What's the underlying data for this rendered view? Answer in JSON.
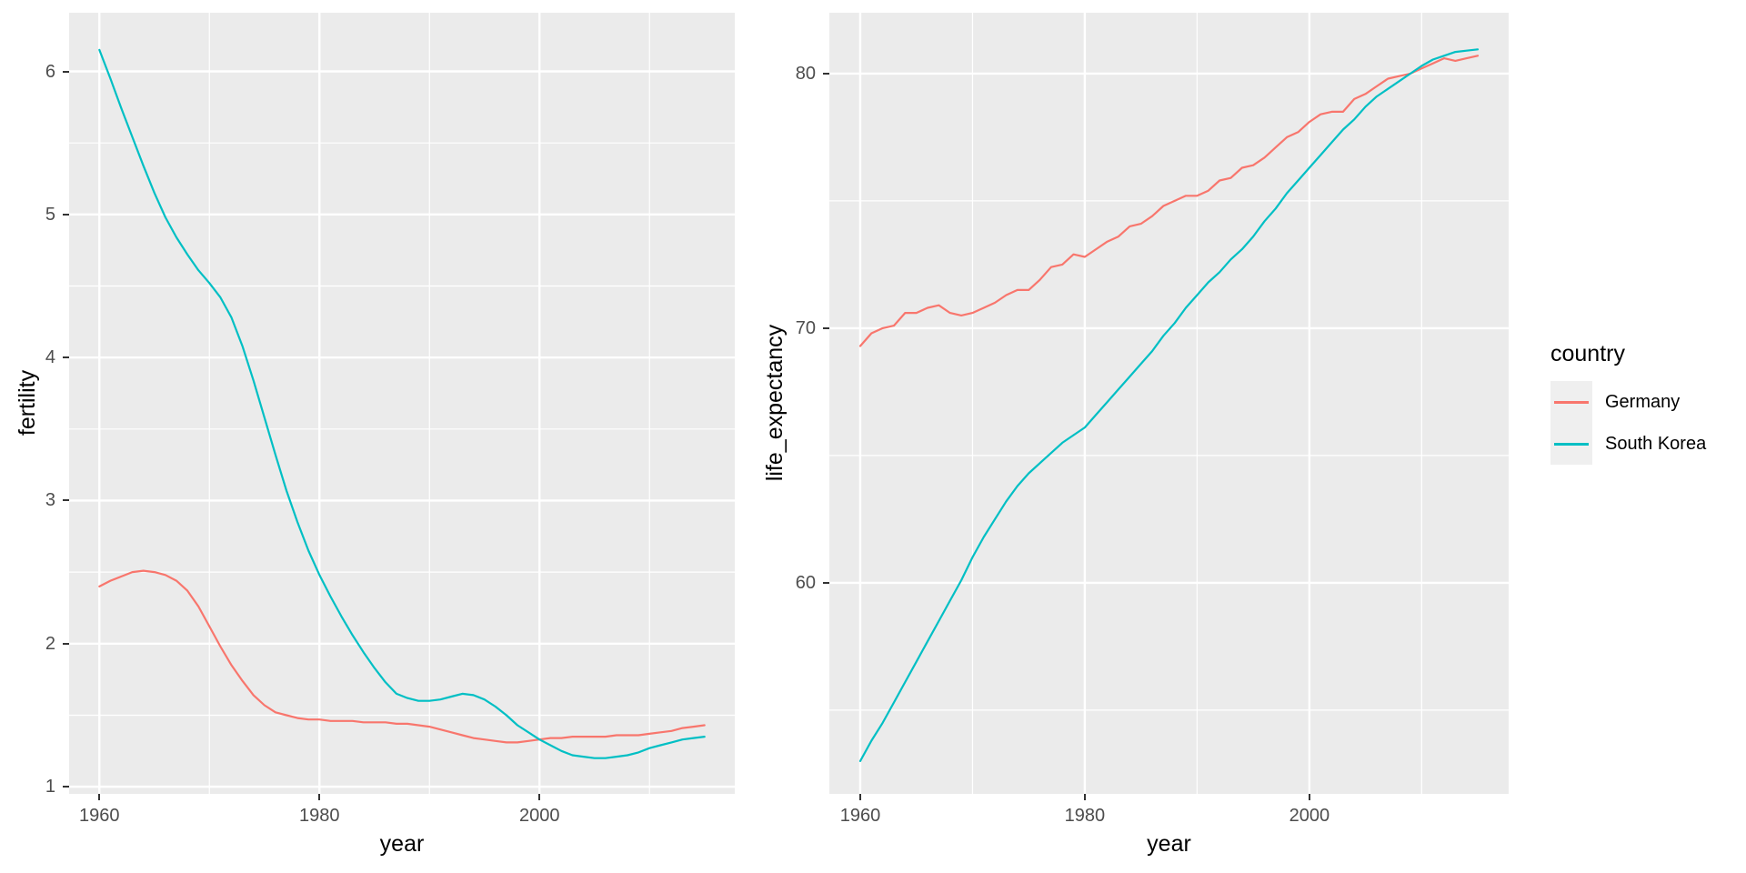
{
  "colors": {
    "germany": "#F8766D",
    "south_korea": "#00BFC4",
    "panel_bg": "#EBEBEB",
    "grid": "#FFFFFF",
    "axis_text": "#4D4D4D",
    "tick_mark": "#333333",
    "legend_key_bg": "#EFEFEF",
    "background": "#FFFFFF"
  },
  "legend": {
    "title": "country",
    "items": [
      {
        "label": "Germany",
        "color": "#F8766D"
      },
      {
        "label": "South Korea",
        "color": "#00BFC4"
      }
    ]
  },
  "chart_data": [
    {
      "type": "line",
      "title": "",
      "xlabel": "year",
      "ylabel": "fertility",
      "xlim": [
        1957.25,
        2017.75
      ],
      "ylim": [
        0.95,
        6.41
      ],
      "grid": true,
      "legend_position": "right-of-figure",
      "x_major": [
        1960,
        1980,
        2000
      ],
      "x_tick_labels": [
        "1960",
        "1980",
        "2000"
      ],
      "x_minor": [
        1970,
        1990,
        2010
      ],
      "y_major": [
        1,
        2,
        3,
        4,
        5,
        6
      ],
      "y_tick_labels": [
        "1",
        "2",
        "3",
        "4",
        "5",
        "6"
      ],
      "y_minor": [
        1.5,
        2.5,
        3.5,
        4.5,
        5.5
      ],
      "x_start": 1960,
      "x_step": 1,
      "x_end": 2015,
      "series": [
        {
          "name": "Germany",
          "color": "#F8766D",
          "values": [
            2.4,
            2.44,
            2.47,
            2.5,
            2.51,
            2.5,
            2.48,
            2.44,
            2.37,
            2.26,
            2.12,
            1.98,
            1.85,
            1.74,
            1.64,
            1.57,
            1.52,
            1.5,
            1.48,
            1.47,
            1.47,
            1.46,
            1.46,
            1.46,
            1.45,
            1.45,
            1.45,
            1.44,
            1.44,
            1.43,
            1.42,
            1.4,
            1.38,
            1.36,
            1.34,
            1.33,
            1.32,
            1.31,
            1.31,
            1.32,
            1.33,
            1.34,
            1.34,
            1.35,
            1.35,
            1.35,
            1.35,
            1.36,
            1.36,
            1.36,
            1.37,
            1.38,
            1.39,
            1.41,
            1.42,
            1.43
          ]
        },
        {
          "name": "South Korea",
          "color": "#00BFC4",
          "values": [
            6.15,
            5.95,
            5.74,
            5.54,
            5.34,
            5.15,
            4.98,
            4.84,
            4.72,
            4.61,
            4.52,
            4.42,
            4.28,
            4.08,
            3.84,
            3.58,
            3.32,
            3.07,
            2.85,
            2.65,
            2.48,
            2.33,
            2.19,
            2.06,
            1.94,
            1.83,
            1.73,
            1.65,
            1.62,
            1.6,
            1.6,
            1.61,
            1.63,
            1.65,
            1.64,
            1.61,
            1.56,
            1.5,
            1.43,
            1.38,
            1.33,
            1.29,
            1.25,
            1.22,
            1.21,
            1.2,
            1.2,
            1.21,
            1.22,
            1.24,
            1.27,
            1.29,
            1.31,
            1.33,
            1.34,
            1.35
          ]
        }
      ]
    },
    {
      "type": "line",
      "title": "",
      "xlabel": "year",
      "ylabel": "life_expectancy",
      "xlim": [
        1957.25,
        2017.75
      ],
      "ylim": [
        51.71,
        82.39
      ],
      "grid": true,
      "x_major": [
        1960,
        1980,
        2000
      ],
      "x_tick_labels": [
        "1960",
        "1980",
        "2000"
      ],
      "x_minor": [
        1970,
        1990,
        2010
      ],
      "y_major": [
        60,
        70,
        80
      ],
      "y_tick_labels": [
        "60",
        "70",
        "80"
      ],
      "y_minor": [
        55,
        65,
        75
      ],
      "x_start": 1960,
      "x_step": 1,
      "x_end": 2015,
      "series": [
        {
          "name": "Germany",
          "color": "#F8766D",
          "values": [
            69.3,
            69.8,
            70.0,
            70.1,
            70.6,
            70.6,
            70.8,
            70.9,
            70.6,
            70.5,
            70.6,
            70.8,
            71.0,
            71.3,
            71.5,
            71.5,
            71.9,
            72.4,
            72.5,
            72.9,
            72.8,
            73.1,
            73.4,
            73.6,
            74.0,
            74.1,
            74.4,
            74.8,
            75.0,
            75.2,
            75.2,
            75.4,
            75.8,
            75.9,
            76.3,
            76.4,
            76.7,
            77.1,
            77.5,
            77.7,
            78.1,
            78.4,
            78.5,
            78.5,
            79.0,
            79.2,
            79.5,
            79.8,
            79.9,
            80.0,
            80.2,
            80.4,
            80.6,
            80.5,
            80.6,
            80.7
          ]
        },
        {
          "name": "South Korea",
          "color": "#00BFC4",
          "values": [
            53.0,
            53.8,
            54.5,
            55.3,
            56.1,
            56.9,
            57.7,
            58.5,
            59.3,
            60.1,
            61.0,
            61.8,
            62.5,
            63.2,
            63.8,
            64.3,
            64.7,
            65.1,
            65.5,
            65.8,
            66.1,
            66.6,
            67.1,
            67.6,
            68.1,
            68.6,
            69.1,
            69.7,
            70.2,
            70.8,
            71.3,
            71.8,
            72.2,
            72.7,
            73.1,
            73.6,
            74.2,
            74.7,
            75.3,
            75.8,
            76.3,
            76.8,
            77.3,
            77.8,
            78.2,
            78.7,
            79.1,
            79.4,
            79.7,
            80.0,
            80.3,
            80.55,
            80.7,
            80.85,
            80.9,
            80.95
          ]
        }
      ]
    }
  ]
}
